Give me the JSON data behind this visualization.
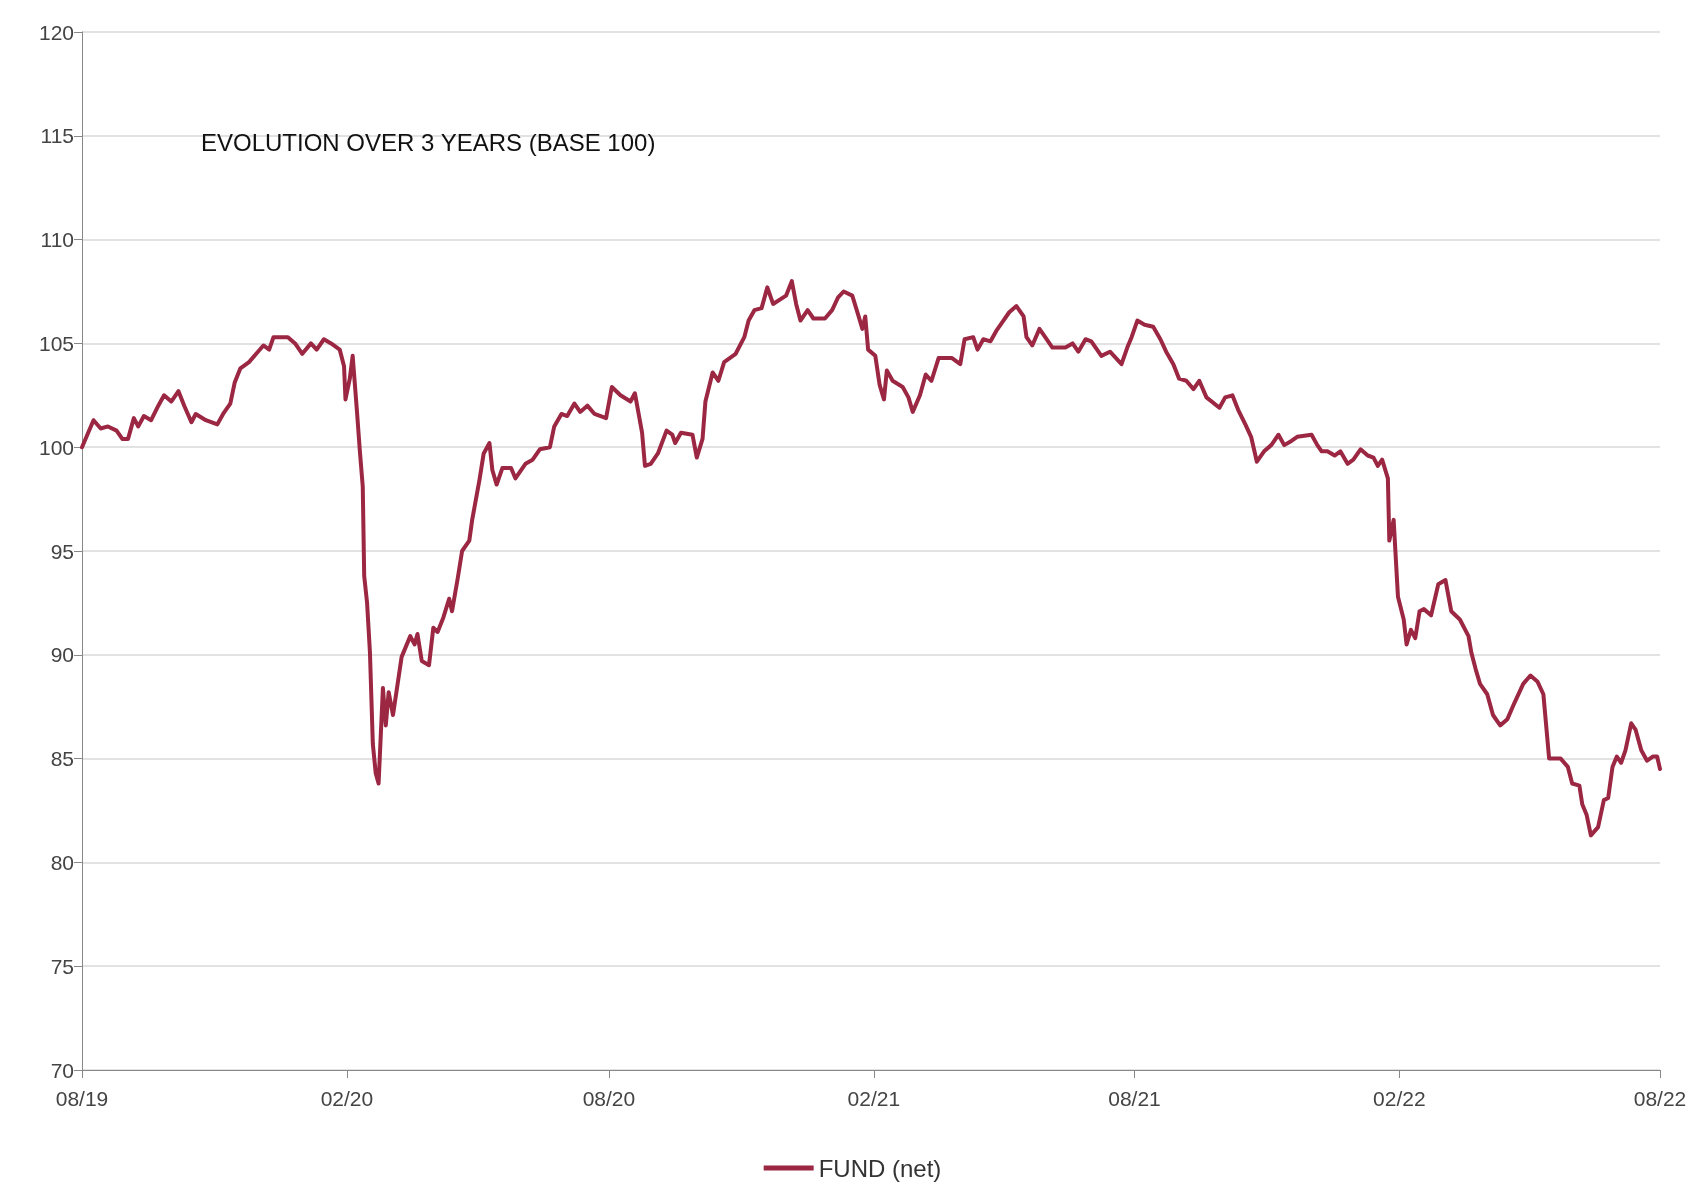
{
  "chart_data": {
    "type": "line",
    "title": "EVOLUTION OVER 3 YEARS (BASE 100)",
    "x": [
      "2019-08-01",
      "2019-08-09",
      "2019-08-14",
      "2019-08-19",
      "2019-08-25",
      "2019-08-29",
      "2019-09-02",
      "2019-09-06",
      "2019-09-09",
      "2019-09-13",
      "2019-09-18",
      "2019-09-23",
      "2019-09-27",
      "2019-10-02",
      "2019-10-07",
      "2019-10-11",
      "2019-10-16",
      "2019-10-19",
      "2019-10-26",
      "2019-11-03",
      "2019-11-07",
      "2019-11-12",
      "2019-11-15",
      "2019-11-19",
      "2019-11-25",
      "2019-11-30",
      "2019-12-05",
      "2019-12-09",
      "2019-12-12",
      "2019-12-22",
      "2019-12-27",
      "2020-01-01",
      "2020-01-07",
      "2020-01-11",
      "2020-01-16",
      "2020-01-21",
      "2020-01-27",
      "2020-01-30",
      "2020-01-31",
      "2020-02-03",
      "2020-02-05",
      "2020-02-08",
      "2020-02-10",
      "2020-02-12",
      "2020-02-13",
      "2020-02-15",
      "2020-02-17",
      "2020-02-19",
      "2020-02-21",
      "2020-02-23",
      "2020-02-26",
      "2020-02-28",
      "2020-03-01",
      "2020-03-04",
      "2020-03-10",
      "2020-03-16",
      "2020-03-19",
      "2020-03-21",
      "2020-03-24",
      "2020-03-29",
      "2020-04-01",
      "2020-04-04",
      "2020-04-08",
      "2020-04-12",
      "2020-04-14",
      "2020-04-18",
      "2020-04-21",
      "2020-04-26",
      "2020-04-28",
      "2020-05-03",
      "2020-05-06",
      "2020-05-10",
      "2020-05-12",
      "2020-05-15",
      "2020-05-19",
      "2020-05-25",
      "2020-05-28",
      "2020-06-04",
      "2020-06-09",
      "2020-06-14",
      "2020-06-21",
      "2020-06-24",
      "2020-06-29",
      "2020-07-03",
      "2020-07-08",
      "2020-07-12",
      "2020-07-17",
      "2020-07-22",
      "2020-07-30",
      "2020-08-03",
      "2020-08-09",
      "2020-08-16",
      "2020-08-19",
      "2020-08-24",
      "2020-08-26",
      "2020-08-30",
      "2020-09-04",
      "2020-09-10",
      "2020-09-14",
      "2020-09-16",
      "2020-09-20",
      "2020-09-28",
      "2020-10-01",
      "2020-10-05",
      "2020-10-07",
      "2020-10-12",
      "2020-10-16",
      "2020-10-20",
      "2020-10-28",
      "2020-11-03",
      "2020-11-06",
      "2020-11-10",
      "2020-11-15",
      "2020-11-19",
      "2020-11-23",
      "2020-12-02",
      "2020-12-06",
      "2020-12-09",
      "2020-12-12",
      "2020-12-17",
      "2020-12-21",
      "2020-12-29",
      "2021-01-03",
      "2021-01-07",
      "2021-01-11",
      "2021-01-17",
      "2021-01-21",
      "2021-01-24",
      "2021-01-26",
      "2021-01-28",
      "2021-02-02",
      "2021-02-05",
      "2021-02-08",
      "2021-02-10",
      "2021-02-14",
      "2021-02-21",
      "2021-02-25",
      "2021-02-28",
      "2021-03-05",
      "2021-03-09",
      "2021-03-13",
      "2021-03-18",
      "2021-03-27",
      "2021-04-02",
      "2021-04-05",
      "2021-04-11",
      "2021-04-14",
      "2021-04-18",
      "2021-04-23",
      "2021-04-27",
      "2021-05-01",
      "2021-05-06",
      "2021-05-11",
      "2021-05-16",
      "2021-05-18",
      "2021-05-22",
      "2021-05-27",
      "2021-05-31",
      "2021-06-05",
      "2021-06-14",
      "2021-06-19",
      "2021-06-23",
      "2021-06-28",
      "2021-07-02",
      "2021-07-09",
      "2021-07-15",
      "2021-07-23",
      "2021-07-27",
      "2021-07-30",
      "2021-08-03",
      "2021-08-08",
      "2021-08-14",
      "2021-08-19",
      "2021-08-23",
      "2021-08-28",
      "2021-09-01",
      "2021-09-06",
      "2021-09-11",
      "2021-09-15",
      "2021-09-20",
      "2021-09-29",
      "2021-10-03",
      "2021-10-08",
      "2021-10-12",
      "2021-10-17",
      "2021-10-21",
      "2021-10-25",
      "2021-10-30",
      "2021-11-04",
      "2021-11-09",
      "2021-11-13",
      "2021-11-18",
      "2021-11-22",
      "2021-12-02",
      "2021-12-06",
      "2021-12-09",
      "2021-12-13",
      "2021-12-18",
      "2021-12-22",
      "2021-12-27",
      "2021-12-31",
      "2022-01-05",
      "2022-01-10",
      "2022-01-14",
      "2022-01-17",
      "2022-01-20",
      "2022-01-24",
      "2022-01-25",
      "2022-01-28",
      "2022-01-31",
      "2022-02-04",
      "2022-02-06",
      "2022-02-09",
      "2022-02-12",
      "2022-02-15",
      "2022-02-18",
      "2022-02-23",
      "2022-02-28",
      "2022-03-05",
      "2022-03-09",
      "2022-03-15",
      "2022-03-21",
      "2022-03-23",
      "2022-03-26",
      "2022-03-29",
      "2022-04-03",
      "2022-04-07",
      "2022-04-12",
      "2022-04-17",
      "2022-04-22",
      "2022-04-28",
      "2022-05-03",
      "2022-05-08",
      "2022-05-12",
      "2022-05-16",
      "2022-05-24",
      "2022-05-29",
      "2022-06-01",
      "2022-06-06",
      "2022-06-08",
      "2022-06-11",
      "2022-06-14",
      "2022-06-19",
      "2022-06-23",
      "2022-06-26",
      "2022-06-29",
      "2022-07-02",
      "2022-07-05",
      "2022-07-08",
      "2022-07-12",
      "2022-07-15",
      "2022-07-19",
      "2022-07-23",
      "2022-07-27",
      "2022-07-30",
      "2022-08-01"
    ],
    "series": [
      {
        "name": "FUND (net)",
        "color": "#9b2743",
        "values": [
          100.0,
          101.3,
          100.9,
          101.0,
          100.8,
          100.4,
          100.4,
          101.4,
          101.0,
          101.5,
          101.3,
          102.0,
          102.5,
          102.2,
          102.7,
          102.0,
          101.2,
          101.6,
          101.3,
          101.1,
          101.6,
          102.1,
          103.1,
          103.8,
          104.1,
          104.5,
          104.9,
          104.7,
          105.3,
          105.3,
          105.0,
          104.5,
          105.0,
          104.7,
          105.2,
          105.0,
          104.7,
          103.9,
          102.3,
          103.3,
          104.4,
          101.7,
          99.8,
          98.1,
          93.8,
          92.5,
          90.1,
          85.7,
          84.3,
          83.8,
          88.4,
          86.6,
          88.2,
          87.1,
          89.9,
          90.9,
          90.5,
          91.0,
          89.7,
          89.5,
          91.3,
          91.1,
          91.8,
          92.7,
          92.1,
          93.7,
          95.0,
          95.5,
          96.5,
          98.4,
          99.7,
          100.2,
          98.9,
          98.2,
          99.0,
          99.0,
          98.5,
          99.2,
          99.4,
          99.9,
          100.0,
          101.0,
          101.6,
          101.5,
          102.1,
          101.7,
          102.0,
          101.6,
          101.4,
          102.9,
          102.5,
          102.2,
          102.6,
          100.7,
          99.1,
          99.2,
          99.7,
          100.8,
          100.6,
          100.2,
          100.7,
          100.6,
          99.5,
          100.4,
          102.2,
          103.6,
          103.2,
          104.1,
          104.5,
          105.3,
          106.1,
          106.6,
          106.7,
          107.7,
          106.9,
          107.3,
          108.0,
          106.9,
          106.1,
          106.6,
          106.2,
          106.2,
          106.6,
          107.2,
          107.5,
          107.3,
          106.4,
          105.7,
          106.3,
          104.7,
          104.4,
          103.0,
          102.3,
          103.7,
          103.2,
          102.9,
          102.4,
          101.7,
          102.5,
          103.5,
          103.2,
          104.3,
          104.3,
          104.0,
          105.2,
          105.3,
          104.7,
          105.2,
          105.1,
          105.6,
          106.0,
          106.5,
          106.8,
          106.3,
          105.3,
          104.9,
          105.7,
          105.3,
          104.8,
          104.8,
          105.0,
          104.6,
          105.2,
          105.1,
          104.4,
          104.6,
          104.0,
          104.8,
          105.3,
          106.1,
          105.9,
          105.8,
          105.2,
          104.6,
          104.0,
          103.3,
          103.2,
          102.8,
          103.2,
          102.4,
          101.9,
          102.4,
          102.5,
          101.8,
          101.1,
          100.5,
          99.3,
          99.8,
          100.1,
          100.6,
          100.1,
          100.3,
          100.5,
          100.6,
          100.1,
          99.8,
          99.8,
          99.6,
          99.8,
          99.2,
          99.4,
          99.9,
          99.6,
          99.5,
          99.1,
          99.4,
          98.5,
          95.5,
          96.5,
          92.8,
          91.7,
          90.5,
          91.2,
          90.8,
          92.1,
          92.2,
          91.9,
          93.4,
          93.6,
          92.1,
          91.7,
          90.9,
          90.1,
          89.3,
          88.6,
          88.1,
          87.1,
          86.6,
          86.9,
          87.7,
          88.6,
          89.0,
          88.7,
          88.1,
          85.0,
          85.0,
          84.6,
          83.8,
          83.7,
          82.8,
          82.3,
          81.3,
          81.7,
          83.0,
          83.1,
          84.6,
          85.1,
          84.8,
          85.4,
          86.7,
          86.4,
          85.4,
          84.9,
          85.1,
          85.1,
          84.5
        ]
      }
    ],
    "xlim": [
      "2019-08-01",
      "2022-08-01"
    ],
    "xticks": [
      {
        "value": "2019-08-01",
        "label": "08/19"
      },
      {
        "value": "2020-02-01",
        "label": "02/20"
      },
      {
        "value": "2020-08-01",
        "label": "08/20"
      },
      {
        "value": "2021-02-01",
        "label": "02/21"
      },
      {
        "value": "2021-08-01",
        "label": "08/21"
      },
      {
        "value": "2022-02-01",
        "label": "02/22"
      },
      {
        "value": "2022-08-01",
        "label": "08/22"
      }
    ],
    "ylim": [
      70,
      120
    ],
    "yticks": [
      70,
      75,
      80,
      85,
      90,
      95,
      100,
      105,
      110,
      115,
      120
    ],
    "grid": "y",
    "legend": "bottom",
    "marker": "none",
    "line_style": "solid"
  }
}
